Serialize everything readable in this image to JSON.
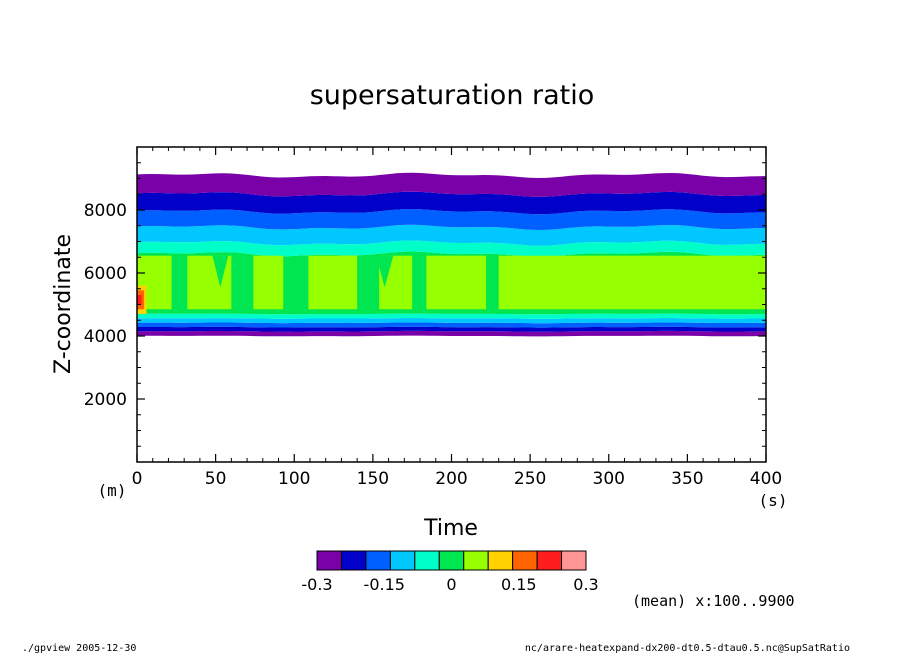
{
  "chart_data": {
    "type": "heatmap",
    "title": "supersaturation ratio",
    "xlabel": "Time",
    "ylabel": "Z-coordinate",
    "x_unit": "(s)",
    "y_unit": "(m)",
    "xlim": [
      0,
      400
    ],
    "ylim": [
      0,
      10000
    ],
    "x_ticks": [
      0,
      50,
      100,
      150,
      200,
      250,
      300,
      350,
      400
    ],
    "y_ticks": [
      2000,
      4000,
      6000,
      8000
    ],
    "bands": [
      {
        "z0": 4000,
        "z1": 4150,
        "color_index": 0
      },
      {
        "z0": 4150,
        "z1": 4280,
        "color_index": 1
      },
      {
        "z0": 4280,
        "z1": 4420,
        "color_index": 2
      },
      {
        "z0": 4420,
        "z1": 4560,
        "color_index": 3
      },
      {
        "z0": 4560,
        "z1": 4700,
        "color_index": 4
      },
      {
        "z0": 4700,
        "z1": 6600,
        "color_index": 5
      },
      {
        "z0": 6600,
        "z1": 6950,
        "color_index": 4
      },
      {
        "z0": 6950,
        "z1": 7450,
        "color_index": 3
      },
      {
        "z0": 7450,
        "z1": 7950,
        "color_index": 2
      },
      {
        "z0": 7950,
        "z1": 8500,
        "color_index": 1
      },
      {
        "z0": 8500,
        "z1": 9100,
        "color_index": 0
      }
    ],
    "light_green_region": {
      "z0": 4850,
      "z1": 6550,
      "color_index": 6,
      "gaps": [
        [
          22,
          32
        ],
        [
          60,
          74
        ],
        [
          93,
          109
        ],
        [
          140,
          154
        ],
        [
          175,
          184
        ],
        [
          222,
          230
        ]
      ],
      "notches": [
        [
          48,
          58
        ],
        [
          152,
          163
        ]
      ]
    },
    "hot_spot": {
      "t0": 0,
      "t1": 6,
      "z0": 4700,
      "z1": 5600,
      "color_indices": [
        7,
        8,
        9
      ]
    },
    "colorbar": {
      "colors": [
        "#7a00a8",
        "#0000c8",
        "#0060ff",
        "#00c8ff",
        "#00ffc8",
        "#00e650",
        "#96ff00",
        "#ffd200",
        "#ff6400",
        "#ff1e1e",
        "#ff9696"
      ],
      "tick_labels": [
        "-0.3",
        "-0.15",
        "0",
        "0.15",
        "0.3"
      ],
      "tick_values": [
        -0.3,
        -0.15,
        0,
        0.15,
        0.3
      ],
      "range": [
        -0.3,
        0.3
      ]
    },
    "annotation": "(mean) x:100..9900"
  },
  "footer": {
    "left": "./gpview  2005-12-30",
    "right": "nc/arare-heatexpand-dx200-dt0.5-dtau0.5.nc@SupSatRatio"
  }
}
